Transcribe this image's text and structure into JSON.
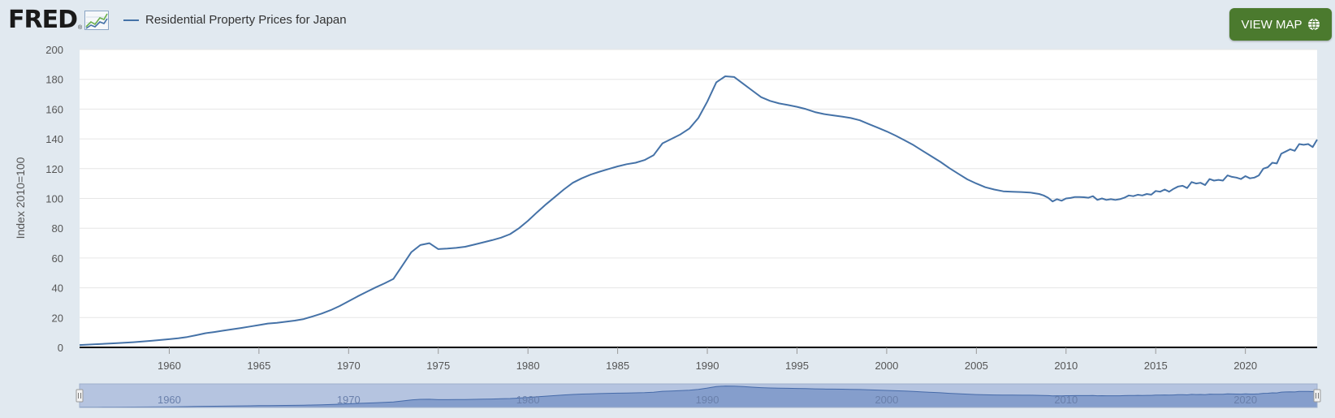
{
  "header": {
    "logo_text": "FRED",
    "logo_reg": "®",
    "view_map_label": "VIEW MAP",
    "logo_icon": "line-chart-icon",
    "map_icon": "globe-icon"
  },
  "colors": {
    "series": "#4572a7",
    "button": "#4b7a2e",
    "background": "#e1e9f0",
    "navigator_fill": "#a8bcdc"
  },
  "chart_data": {
    "type": "line",
    "title": "",
    "legend": {
      "placement": "top-left"
    },
    "xlabel": "",
    "ylabel": "Index 2010=100",
    "xlim": [
      1955.0,
      2024.0
    ],
    "ylim": [
      0,
      200
    ],
    "y_ticks": [
      0,
      20,
      40,
      60,
      80,
      100,
      120,
      140,
      160,
      180,
      200
    ],
    "x_ticks": [
      1960,
      1965,
      1970,
      1975,
      1980,
      1985,
      1990,
      1995,
      2000,
      2005,
      2010,
      2015,
      2020
    ],
    "grid": true,
    "navigator_ticks": [
      1960,
      1970,
      1980,
      1990,
      2000,
      2010,
      2020
    ],
    "series": [
      {
        "name": "Residential Property Prices for Japan",
        "x": [
          1955.0,
          1956.0,
          1957.0,
          1958.0,
          1959.0,
          1960.0,
          1960.5,
          1961.0,
          1961.5,
          1962.0,
          1962.5,
          1963.0,
          1963.5,
          1964.0,
          1964.5,
          1965.0,
          1965.5,
          1966.0,
          1966.5,
          1967.0,
          1967.5,
          1968.0,
          1968.5,
          1969.0,
          1969.5,
          1970.0,
          1970.5,
          1971.0,
          1971.5,
          1972.0,
          1972.5,
          1973.0,
          1973.5,
          1974.0,
          1974.5,
          1975.0,
          1975.5,
          1976.0,
          1976.5,
          1977.0,
          1977.5,
          1978.0,
          1978.5,
          1979.0,
          1979.5,
          1980.0,
          1980.5,
          1981.0,
          1981.5,
          1982.0,
          1982.5,
          1983.0,
          1983.5,
          1984.0,
          1984.5,
          1985.0,
          1985.5,
          1986.0,
          1986.5,
          1987.0,
          1987.5,
          1988.0,
          1988.5,
          1989.0,
          1989.5,
          1990.0,
          1990.5,
          1991.0,
          1991.5,
          1992.0,
          1992.5,
          1993.0,
          1993.5,
          1994.0,
          1994.5,
          1995.0,
          1995.5,
          1996.0,
          1996.5,
          1997.0,
          1997.5,
          1998.0,
          1998.5,
          1999.0,
          1999.5,
          2000.0,
          2000.5,
          2001.0,
          2001.5,
          2002.0,
          2002.5,
          2003.0,
          2003.5,
          2004.0,
          2004.5,
          2005.0,
          2005.5,
          2006.0,
          2006.5,
          2007.0,
          2007.5,
          2008.0,
          2008.25,
          2008.5,
          2008.75,
          2009.0,
          2009.25,
          2009.5,
          2009.75,
          2010.0,
          2010.25,
          2010.5,
          2010.75,
          2011.0,
          2011.25,
          2011.5,
          2011.75,
          2012.0,
          2012.25,
          2012.5,
          2012.75,
          2013.0,
          2013.25,
          2013.5,
          2013.75,
          2014.0,
          2014.25,
          2014.5,
          2014.75,
          2015.0,
          2015.25,
          2015.5,
          2015.75,
          2016.0,
          2016.25,
          2016.5,
          2016.75,
          2017.0,
          2017.25,
          2017.5,
          2017.75,
          2018.0,
          2018.25,
          2018.5,
          2018.75,
          2019.0,
          2019.25,
          2019.5,
          2019.75,
          2020.0,
          2020.25,
          2020.5,
          2020.75,
          2021.0,
          2021.25,
          2021.5,
          2021.75,
          2022.0,
          2022.25,
          2022.5,
          2022.75,
          2023.0,
          2023.25,
          2023.5,
          2023.75,
          2024.0
        ],
        "values": [
          1.6,
          2.2,
          2.8,
          3.5,
          4.4,
          5.5,
          6.1,
          7.0,
          8.2,
          9.5,
          10.3,
          11.2,
          12.1,
          13.0,
          14.0,
          15.0,
          16.0,
          16.5,
          17.2,
          18.0,
          19.0,
          20.8,
          22.7,
          25.0,
          27.8,
          31.0,
          34.2,
          37.3,
          40.2,
          43.0,
          46.0,
          55.0,
          64.0,
          68.7,
          70.0,
          66.0,
          66.3,
          66.8,
          67.6,
          69.0,
          70.5,
          72.0,
          73.7,
          76.0,
          80.0,
          85.0,
          90.6,
          96.0,
          101.0,
          106.0,
          110.5,
          113.5,
          116.0,
          118.0,
          119.8,
          121.5,
          123.0,
          124.0,
          125.8,
          129.0,
          137.0,
          140.0,
          143.0,
          147.0,
          154.0,
          165.0,
          178.0,
          182.0,
          181.5,
          177.0,
          172.5,
          168.0,
          165.5,
          163.8,
          162.7,
          161.5,
          160.0,
          158.0,
          156.7,
          155.8,
          155.0,
          154.0,
          152.5,
          150.0,
          147.5,
          145.0,
          142.2,
          139.0,
          135.8,
          132.0,
          128.3,
          124.5,
          120.3,
          116.5,
          112.8,
          110.0,
          107.5,
          106.0,
          104.8,
          104.5,
          104.3,
          104.0,
          103.5,
          103.0,
          102.0,
          100.5,
          98.0,
          99.5,
          98.5,
          100.0,
          100.3,
          101.0,
          101.0,
          100.8,
          100.5,
          101.5,
          99.0,
          100.0,
          99.0,
          99.5,
          99.0,
          99.5,
          100.5,
          102.0,
          101.5,
          102.5,
          102.0,
          103.0,
          102.5,
          105.0,
          104.5,
          106.0,
          104.5,
          106.5,
          108.0,
          108.5,
          107.0,
          111.0,
          110.0,
          110.5,
          109.0,
          113.0,
          112.0,
          112.5,
          112.0,
          115.5,
          114.5,
          114.0,
          113.0,
          115.0,
          113.5,
          114.0,
          115.5,
          120.0,
          121.0,
          124.0,
          123.5,
          130.0,
          131.5,
          133.0,
          132.0,
          136.5,
          136.0,
          136.5,
          134.5,
          139.5
        ]
      }
    ]
  }
}
